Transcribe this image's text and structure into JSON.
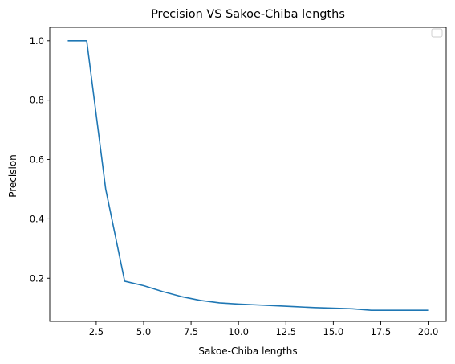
{
  "chart_data": {
    "type": "line",
    "title": "Precision VS Sakoe-Chiba lengths",
    "xlabel": "Sakoe-Chiba lengths",
    "ylabel": "Precision",
    "xlim": [
      0.05,
      20.95
    ],
    "ylim": [
      0.0545,
      1.0455
    ],
    "grid": false,
    "legend": "top-right",
    "x_ticks": [
      2.5,
      5.0,
      7.5,
      10.0,
      12.5,
      15.0,
      17.5,
      20.0
    ],
    "x_tick_labels": [
      "2.5",
      "5.0",
      "7.5",
      "10.0",
      "12.5",
      "15.0",
      "17.5",
      "20.0"
    ],
    "y_ticks": [
      0.2,
      0.4,
      0.6,
      0.8,
      1.0
    ],
    "y_tick_labels": [
      "0.2",
      "0.4",
      "0.6",
      "0.8",
      "1.0"
    ],
    "series": [
      {
        "color": "#1f77b4",
        "x": [
          1,
          2,
          3,
          4,
          5,
          6,
          7,
          8,
          9,
          10,
          11,
          12,
          13,
          14,
          15,
          16,
          17,
          18,
          19,
          20
        ],
        "y": [
          1.0,
          1.0,
          0.5,
          0.19,
          0.175,
          0.155,
          0.138,
          0.125,
          0.117,
          0.113,
          0.11,
          0.107,
          0.104,
          0.101,
          0.099,
          0.097,
          0.092,
          0.092,
          0.092,
          0.092
        ]
      }
    ]
  }
}
